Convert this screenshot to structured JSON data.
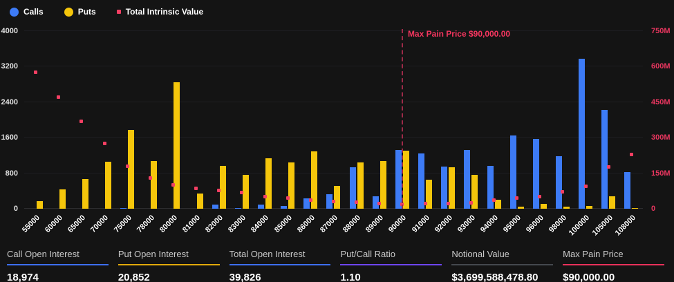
{
  "legend": {
    "items": [
      {
        "label": "Calls",
        "color": "#3d7bf6",
        "marker": "circle"
      },
      {
        "label": "Puts",
        "color": "#f5c60b",
        "marker": "circle"
      },
      {
        "label": "Total Intrinsic Value",
        "color": "#f43f63",
        "marker": "square"
      }
    ]
  },
  "chart_data": {
    "type": "bar",
    "title": "",
    "categories": [
      "55000",
      "60000",
      "65000",
      "70000",
      "75000",
      "78000",
      "80000",
      "81000",
      "82000",
      "83000",
      "84000",
      "85000",
      "86000",
      "87000",
      "88000",
      "89000",
      "90000",
      "91000",
      "92000",
      "93000",
      "94000",
      "95000",
      "96000",
      "98000",
      "100000",
      "105000",
      "108000"
    ],
    "series": [
      {
        "name": "Calls",
        "type": "bar",
        "yaxis": "left",
        "color": "#3d7bf6",
        "values": [
          0,
          0,
          0,
          0,
          20,
          0,
          0,
          0,
          90,
          10,
          100,
          70,
          240,
          320,
          930,
          280,
          1330,
          1240,
          950,
          1320,
          960,
          1650,
          1570,
          1190,
          3370,
          2220,
          820
        ]
      },
      {
        "name": "Puts",
        "type": "bar",
        "yaxis": "left",
        "color": "#f5c60b",
        "values": [
          170,
          440,
          670,
          1060,
          1780,
          1080,
          2850,
          350,
          960,
          760,
          1130,
          1050,
          1290,
          510,
          1050,
          1070,
          1310,
          650,
          940,
          770,
          210,
          40,
          110,
          50,
          60,
          280,
          20
        ]
      },
      {
        "name": "Total Intrinsic Value",
        "type": "scatter",
        "yaxis": "right",
        "color": "#f43f63",
        "values_millions": [
          575,
          470,
          370,
          275,
          180,
          130,
          100,
          86,
          77,
          69,
          52,
          45,
          37,
          32,
          27,
          23,
          20,
          22,
          22,
          26,
          36,
          45,
          50,
          71,
          95,
          176,
          230
        ]
      }
    ],
    "left_axis": {
      "min": 0,
      "max": 4000,
      "ticks": [
        "0",
        "800",
        "1600",
        "2400",
        "3200",
        "4000"
      ]
    },
    "right_axis": {
      "min": 0,
      "max_millions": 750,
      "ticks": [
        "0",
        "150M",
        "300M",
        "450M",
        "600M",
        "750M"
      ]
    },
    "annotation": {
      "text": "Max Pain Price $90,000.00",
      "category": "90000",
      "line_color": "#9e2a48",
      "text_color": "#f5365f"
    },
    "grid": true,
    "legend_position": "top-left"
  },
  "stats": [
    {
      "label": "Call Open Interest",
      "value": "18,974",
      "accent": "#3d6ef5"
    },
    {
      "label": "Put Open Interest",
      "value": "20,852",
      "accent": "#e2a90a"
    },
    {
      "label": "Total Open Interest",
      "value": "39,826",
      "accent": "#3d6ef5"
    },
    {
      "label": "Put/Call Ratio",
      "value": "1.10",
      "accent": "#6d45f0"
    },
    {
      "label": "Notional Value",
      "value": "$3,699,588,478.80",
      "accent": "#44484e"
    },
    {
      "label": "Max Pain Price",
      "value": "$90,000.00",
      "accent": "#e8315b"
    }
  ]
}
